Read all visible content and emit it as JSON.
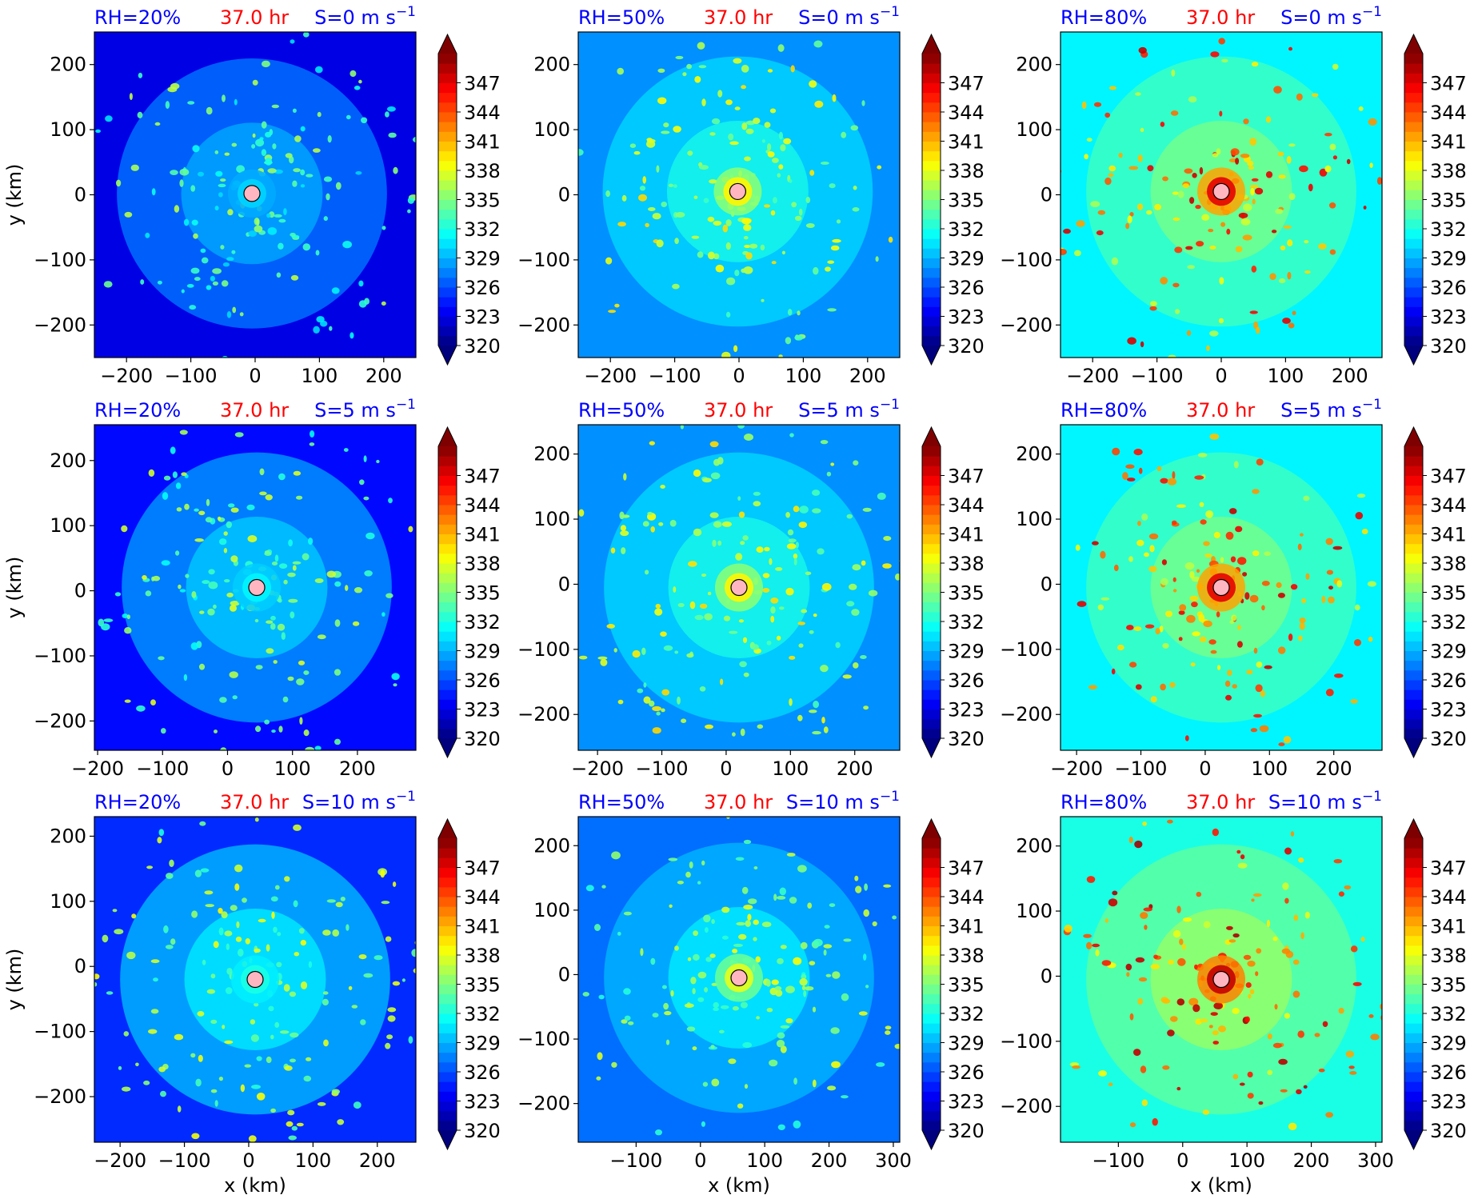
{
  "colors": {
    "rh_label": "#0000ff",
    "time_label": "#ff0000",
    "shear_label": "#0000ff",
    "center_marker": "#ffb6c1",
    "colormap": [
      "#00007f",
      "#0000ff",
      "#007fff",
      "#00ffff",
      "#7fff7f",
      "#ffff00",
      "#ff7f00",
      "#ff0000",
      "#7f0000"
    ]
  },
  "colorbar": {
    "tick_labels": [
      "320",
      "323",
      "326",
      "329",
      "332",
      "335",
      "338",
      "341",
      "344",
      "347"
    ],
    "vmin": 320,
    "vmax": 350,
    "extend": "both"
  },
  "chart_data": [
    {
      "type": "heatmap",
      "rh": "RH=20%",
      "time": "37.0 hr",
      "shear": "S=0 m s",
      "shear_exp": "−1",
      "xticks": [
        "−200",
        "−100",
        "0",
        "100",
        "200"
      ],
      "xtick_values": [
        -200,
        -100,
        0,
        100,
        200
      ],
      "yticks": [
        "−200",
        "−100",
        "0",
        "100",
        "200"
      ],
      "ytick_values": [
        -200,
        -100,
        0,
        100,
        200
      ],
      "xlim": [
        -250,
        250
      ],
      "ylim": [
        -250,
        250
      ],
      "center": [
        -5,
        2
      ],
      "ylabel": "y (km)",
      "xlabel": "",
      "field_mean": 327
    },
    {
      "type": "heatmap",
      "rh": "RH=50%",
      "time": "37.0 hr",
      "shear": "S=0 m s",
      "shear_exp": "−1",
      "xticks": [
        "−200",
        "−100",
        "0",
        "100",
        "200"
      ],
      "xtick_values": [
        -200,
        -100,
        0,
        100,
        200
      ],
      "yticks": [
        "−200",
        "−100",
        "0",
        "100",
        "200"
      ],
      "ytick_values": [
        -200,
        -100,
        0,
        100,
        200
      ],
      "xlim": [
        -250,
        250
      ],
      "ylim": [
        -250,
        250
      ],
      "center": [
        -2,
        5
      ],
      "ylabel": "",
      "xlabel": "",
      "field_mean": 330
    },
    {
      "type": "heatmap",
      "rh": "RH=80%",
      "time": "37.0 hr",
      "shear": "S=0 m s",
      "shear_exp": "−1",
      "xticks": [
        "−200",
        "−100",
        "0",
        "100",
        "200"
      ],
      "xtick_values": [
        -200,
        -100,
        0,
        100,
        200
      ],
      "yticks": [
        "−200",
        "−100",
        "0",
        "100",
        "200"
      ],
      "ytick_values": [
        -200,
        -100,
        0,
        100,
        200
      ],
      "xlim": [
        -250,
        250
      ],
      "ylim": [
        -250,
        250
      ],
      "center": [
        0,
        5
      ],
      "ylabel": "",
      "xlabel": "",
      "field_mean": 333
    },
    {
      "type": "heatmap",
      "rh": "RH=20%",
      "time": "37.0 hr",
      "shear": "S=5 m s",
      "shear_exp": "−1",
      "xticks": [
        "−200",
        "−100",
        "0",
        "100",
        "200"
      ],
      "xtick_values": [
        -200,
        -100,
        0,
        100,
        200
      ],
      "yticks": [
        "−200",
        "−100",
        "0",
        "100",
        "200"
      ],
      "ytick_values": [
        -200,
        -100,
        0,
        100,
        200
      ],
      "xlim": [
        -205,
        290
      ],
      "ylim": [
        -245,
        255
      ],
      "center": [
        45,
        5
      ],
      "ylabel": "y (km)",
      "xlabel": "",
      "field_mean": 328
    },
    {
      "type": "heatmap",
      "rh": "RH=50%",
      "time": "37.0 hr",
      "shear": "S=5 m s",
      "shear_exp": "−1",
      "xticks": [
        "−200",
        "−100",
        "0",
        "100",
        "200"
      ],
      "xtick_values": [
        -200,
        -100,
        0,
        100,
        200
      ],
      "yticks": [
        "−200",
        "−100",
        "0",
        "100",
        "200"
      ],
      "ytick_values": [
        -200,
        -100,
        0,
        100,
        200
      ],
      "xlim": [
        -230,
        270
      ],
      "ylim": [
        -255,
        245
      ],
      "center": [
        20,
        -5
      ],
      "ylabel": "",
      "xlabel": "",
      "field_mean": 330
    },
    {
      "type": "heatmap",
      "rh": "RH=80%",
      "time": "37.0 hr",
      "shear": "S=5 m s",
      "shear_exp": "−1",
      "xticks": [
        "−200",
        "−100",
        "0",
        "100",
        "200"
      ],
      "xtick_values": [
        -200,
        -100,
        0,
        100,
        200
      ],
      "yticks": [
        "−200",
        "−100",
        "0",
        "100",
        "200"
      ],
      "ytick_values": [
        -200,
        -100,
        0,
        100,
        200
      ],
      "xlim": [
        -225,
        275
      ],
      "ylim": [
        -255,
        245
      ],
      "center": [
        25,
        -5
      ],
      "ylabel": "",
      "xlabel": "",
      "field_mean": 333
    },
    {
      "type": "heatmap",
      "rh": "RH=20%",
      "time": "37.0 hr",
      "shear": "S=10 m s",
      "shear_exp": "−1",
      "xticks": [
        "−200",
        "−100",
        "0",
        "100",
        "200"
      ],
      "xtick_values": [
        -200,
        -100,
        0,
        100,
        200
      ],
      "yticks": [
        "−200",
        "−100",
        "0",
        "100",
        "200"
      ],
      "ytick_values": [
        -200,
        -100,
        0,
        100,
        200
      ],
      "xlim": [
        -240,
        260
      ],
      "ylim": [
        -270,
        230
      ],
      "center": [
        10,
        -20
      ],
      "ylabel": "y (km)",
      "xlabel": "x (km)",
      "field_mean": 329
    },
    {
      "type": "heatmap",
      "rh": "RH=50%",
      "time": "37.0 hr",
      "shear": "S=10 m s",
      "shear_exp": "−1",
      "xticks": [
        "−100",
        "0",
        "100",
        "200",
        "300"
      ],
      "xtick_values": [
        -100,
        0,
        100,
        200,
        300
      ],
      "yticks": [
        "−200",
        "−100",
        "0",
        "100",
        "200"
      ],
      "ytick_values": [
        -200,
        -100,
        0,
        100,
        200
      ],
      "xlim": [
        -190,
        310
      ],
      "ylim": [
        -260,
        245
      ],
      "center": [
        60,
        -5
      ],
      "ylabel": "",
      "xlabel": "x (km)",
      "field_mean": 329
    },
    {
      "type": "heatmap",
      "rh": "RH=80%",
      "time": "37.0 hr",
      "shear": "S=10 m s",
      "shear_exp": "−1",
      "xticks": [
        "−100",
        "0",
        "100",
        "200",
        "300"
      ],
      "xtick_values": [
        -100,
        0,
        100,
        200,
        300
      ],
      "yticks": [
        "−200",
        "−100",
        "0",
        "100",
        "200"
      ],
      "ytick_values": [
        -200,
        -100,
        0,
        100,
        200
      ],
      "xlim": [
        -190,
        310
      ],
      "ylim": [
        -255,
        245
      ],
      "center": [
        60,
        -5
      ],
      "ylabel": "",
      "xlabel": "x (km)",
      "field_mean": 334
    }
  ]
}
